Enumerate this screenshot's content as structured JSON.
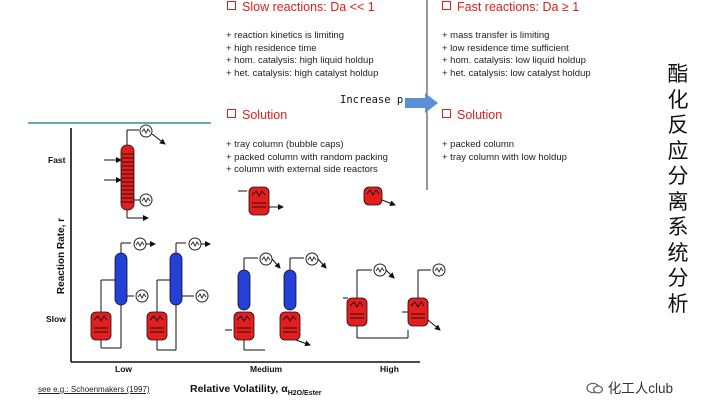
{
  "slow": {
    "heading": "Slow reactions: Da << 1",
    "bullets": [
      "+ reaction kinetics is limiting",
      "+ high residence time",
      "+ hom. catalysis: high liquid holdup",
      "+ het. catalysis: high catalyst holdup"
    ],
    "solution_heading": "Solution",
    "solution_bullets": [
      "+ tray column (bubble caps)",
      "+ packed column with random packing",
      "+ column with external side reactors"
    ]
  },
  "fast": {
    "heading": "Fast reactions: Da ≥ 1",
    "bullets": [
      "+ mass transfer is limiting",
      "+ low residence time sufficient",
      "+ hom. catalysis: low liquid holdup",
      "+ het. catalysis: low catalyst holdup"
    ],
    "solution_heading": "Solution",
    "solution_bullets": [
      "+ packed column",
      "+ tray column with low holdup"
    ]
  },
  "arrow_label": "Increase p",
  "side_title": "酯化反应分离系统分析",
  "plot": {
    "y_axis_label": "Reaction Rate, r",
    "y_ticks": [
      "Fast",
      "Slow"
    ],
    "x_ticks": [
      "Low",
      "Medium",
      "High"
    ],
    "x_axis_label": "Relative Volatility, α",
    "x_axis_subscript": "H2O/Ester",
    "reference": "see e.g.: Schoenmakers (1997)"
  },
  "watermark": "化工人club",
  "colors": {
    "accent_red": "#e0201c",
    "reactor_red": "#e41e1e",
    "column_blue": "#2440d8",
    "arrow_blue": "#5b8fd6",
    "teal_rule": "#2f8f8a"
  }
}
